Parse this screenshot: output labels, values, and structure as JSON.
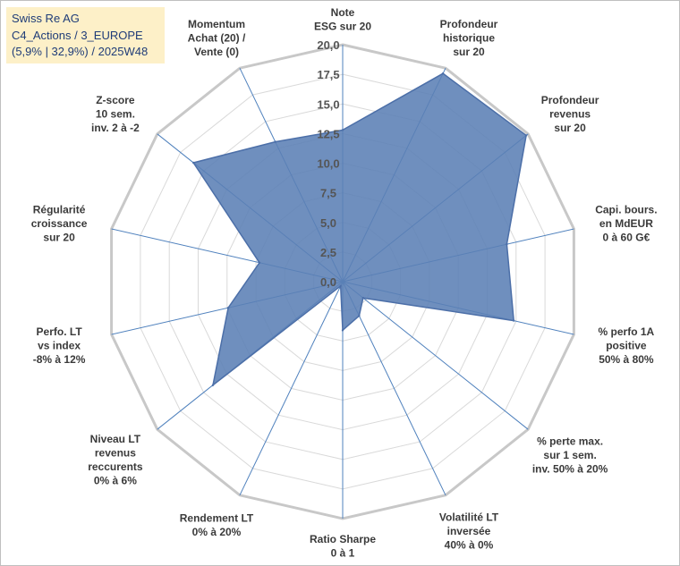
{
  "info_box": {
    "line1": "Swiss Re AG",
    "line2": "C4_Actions / 3_EUROPE",
    "line3": "(5,9% | 32,9%) / 2025W48"
  },
  "colors": {
    "fill": "#5b7fb5",
    "stroke": "#4c6fa8",
    "spoke": "#4f81bd",
    "grid": "#d9d9d9",
    "outer_ring": "#c8c8c8",
    "info_bg": "#fdf0c8",
    "info_text": "#1f3c78"
  },
  "chart_data": {
    "type": "radar",
    "rmin": 0,
    "rmax": 20,
    "tick_step": 2.5,
    "ticks": [
      "0,0",
      "2,5",
      "5,0",
      "7,5",
      "10,0",
      "12,5",
      "15,0",
      "17,5",
      "20,0"
    ],
    "grid": true,
    "legend": "none",
    "axes": [
      [
        "Note",
        "ESG sur 20"
      ],
      [
        "Profondeur",
        "historique",
        "sur 20"
      ],
      [
        "Profondeur",
        "revenus",
        "sur 20"
      ],
      [
        "Capi. bours.",
        "en MdEUR",
        "0 à 60 G€"
      ],
      [
        "% perfo 1A",
        "positive",
        "50% à 80%"
      ],
      [
        "% perte max.",
        "sur 1 sem.",
        "inv. 50% à 20%"
      ],
      [
        "Volatilité LT",
        "inversée",
        "40% à 0%"
      ],
      [
        "Ratio Sharpe",
        "0 à 1"
      ],
      [
        "Rendement LT",
        "0% à 20%"
      ],
      [
        "Niveau LT",
        "revenus",
        "reccurents",
        "0% à 6%"
      ],
      [
        "Perfo. LT",
        "vs index",
        "-8% à 12%"
      ],
      [
        "Régularité",
        "croissance",
        "sur 20"
      ],
      [
        "Z-score",
        "10 sem.",
        "inv. 2 à -2"
      ],
      [
        "Momentum",
        "Achat (20) /",
        "Vente (0)"
      ]
    ],
    "values": [
      12.8,
      19.5,
      19.8,
      14.2,
      14.8,
      2.2,
      3.2,
      4.1,
      0.4,
      14.0,
      9.9,
      7.2,
      16.1,
      13.1
    ]
  }
}
